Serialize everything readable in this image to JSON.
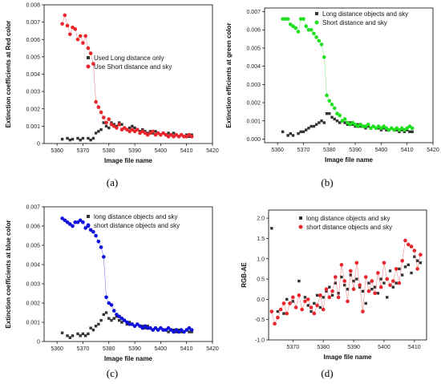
{
  "chart_data": [
    {
      "type": "scatter",
      "panel_label": "(a)",
      "xlabel": "Image file name",
      "ylabel": "Extinction coefficients at Red color",
      "xlim": [
        5355,
        5420
      ],
      "ylim": [
        0,
        0.008
      ],
      "xticks": [
        "5360",
        "5370",
        "5380",
        "5390",
        "5400",
        "5410",
        "5420"
      ],
      "yticks": [
        "0",
        "0.001",
        "0.002",
        "0.003",
        "0.004",
        "0.005",
        "0.006",
        "0.007",
        "0.008"
      ],
      "legend_position": "middle-right",
      "series": [
        {
          "name": "Used Long distance only",
          "color": "#333333",
          "marker": "square",
          "connect": false,
          "x": [
            5362,
            5364,
            5365,
            5366,
            5368,
            5369,
            5370,
            5371,
            5372,
            5373,
            5374,
            5375,
            5376,
            5377,
            5378,
            5379,
            5380,
            5381,
            5382,
            5383,
            5384,
            5385,
            5386,
            5387,
            5388,
            5389,
            5390,
            5391,
            5392,
            5393,
            5394,
            5395,
            5396,
            5397,
            5398,
            5399,
            5400,
            5401,
            5402,
            5403,
            5404,
            5405,
            5406,
            5407,
            5408,
            5409,
            5410,
            5411,
            5412
          ],
          "y": [
            0.00025,
            0.0003,
            0.0002,
            0.00025,
            0.0003,
            0.0002,
            0.0003,
            -5e-05,
            0.0003,
            0.0002,
            0.0003,
            0.0006,
            0.0007,
            0.0008,
            0.0012,
            0.001,
            0.0009,
            0.0012,
            0.0011,
            0.001,
            0.0012,
            0.0011,
            0.0009,
            0.0008,
            0.0009,
            0.001,
            0.0009,
            0.0008,
            0.0007,
            0.0008,
            0.0007,
            0.0006,
            0.0007,
            0.0006,
            0.0007,
            0.0006,
            0.0005,
            0.0006,
            0.0005,
            0.0006,
            0.0005,
            0.0006,
            0.0005,
            0.0004,
            0.0005,
            0.0004,
            0.0005,
            0.0004,
            0.0005
          ]
        },
        {
          "name": "Use Short distance and sky",
          "color": "#e8262b",
          "marker": "circle",
          "connect": true,
          "x": [
            5362,
            5363,
            5364,
            5365,
            5366,
            5367,
            5368,
            5369,
            5370,
            5371,
            5372,
            5373,
            5374,
            5375,
            5376,
            5377,
            5378,
            5379,
            5380,
            5381,
            5382,
            5383,
            5384,
            5385,
            5386,
            5387,
            5388,
            5389,
            5390,
            5391,
            5392,
            5393,
            5394,
            5395,
            5396,
            5397,
            5398,
            5399,
            5400,
            5401,
            5402,
            5403,
            5404,
            5405,
            5406,
            5407,
            5408,
            5409,
            5410,
            5411,
            5412
          ],
          "y": [
            0.0069,
            0.0074,
            0.0068,
            0.0063,
            0.0067,
            0.0066,
            0.006,
            0.0062,
            0.0058,
            0.0062,
            0.0055,
            0.0052,
            0.0046,
            0.0024,
            0.0021,
            0.0018,
            0.0015,
            0.0012,
            0.0014,
            0.0011,
            0.001,
            0.0009,
            0.0011,
            0.0008,
            0.0009,
            0.0008,
            0.0007,
            0.0008,
            0.0007,
            0.0008,
            0.0006,
            0.0007,
            0.0006,
            0.0005,
            0.0006,
            0.0007,
            0.0005,
            0.0006,
            0.0005,
            0.0006,
            0.0005,
            0.0004,
            0.0005,
            0.0004,
            0.0005,
            0.0004,
            0.0005,
            0.0004,
            0.0004,
            0.0005,
            0.0004
          ]
        }
      ]
    },
    {
      "type": "scatter",
      "panel_label": "(b)",
      "xlabel": "Image file name",
      "ylabel": "Extinction efficients at green color",
      "xlim": [
        5355,
        5420
      ],
      "ylim": [
        -0.0002,
        0.0072
      ],
      "xticks": [
        "5360",
        "5370",
        "5380",
        "5390",
        "5400",
        "5410",
        "5420"
      ],
      "yticks": [
        "0.000",
        "0.001",
        "0.002",
        "0.003",
        "0.004",
        "0.005",
        "0.006",
        "0.007"
      ],
      "legend_position": "top-right",
      "series": [
        {
          "name": "Long distance objects and sky",
          "color": "#333333",
          "marker": "square",
          "connect": false,
          "x": [
            5362,
            5364,
            5365,
            5366,
            5368,
            5369,
            5370,
            5371,
            5372,
            5373,
            5374,
            5375,
            5376,
            5377,
            5378,
            5379,
            5380,
            5381,
            5382,
            5383,
            5384,
            5385,
            5386,
            5387,
            5388,
            5389,
            5390,
            5391,
            5392,
            5393,
            5394,
            5395,
            5396,
            5397,
            5398,
            5399,
            5400,
            5401,
            5402,
            5403,
            5404,
            5405,
            5406,
            5407,
            5408,
            5409,
            5410,
            5411,
            5412
          ],
          "y": [
            0.0004,
            0.0002,
            0.0003,
            0.0002,
            0.0003,
            0.0004,
            0.0004,
            0.0005,
            0.0006,
            0.0007,
            0.0007,
            0.0008,
            0.0009,
            0.001,
            0.0009,
            0.0014,
            0.0014,
            0.0012,
            0.0011,
            0.001,
            0.0009,
            0.001,
            0.0009,
            0.0008,
            0.0009,
            0.0008,
            0.0007,
            0.0008,
            0.0007,
            0.0007,
            0.0006,
            0.0007,
            0.0006,
            0.0007,
            0.0006,
            0.0006,
            0.0005,
            0.0006,
            0.0005,
            0.0005,
            0.0006,
            0.0005,
            0.0005,
            0.0004,
            0.0005,
            0.0004,
            0.0005,
            0.0004,
            0.0004
          ]
        },
        {
          "name": "Short distance and sky",
          "color": "#1fe01f",
          "marker": "circle",
          "connect": true,
          "x": [
            5362,
            5363,
            5364,
            5365,
            5366,
            5367,
            5368,
            5369,
            5370,
            5371,
            5372,
            5373,
            5374,
            5375,
            5376,
            5377,
            5378,
            5379,
            5380,
            5381,
            5382,
            5383,
            5384,
            5385,
            5386,
            5387,
            5388,
            5389,
            5390,
            5391,
            5392,
            5393,
            5394,
            5395,
            5396,
            5397,
            5398,
            5399,
            5400,
            5401,
            5402,
            5403,
            5404,
            5405,
            5406,
            5407,
            5408,
            5409,
            5410,
            5411,
            5412
          ],
          "y": [
            0.0066,
            0.0066,
            0.0066,
            0.0063,
            0.0062,
            0.0061,
            0.0059,
            0.0066,
            0.0066,
            0.0062,
            0.006,
            0.006,
            0.0058,
            0.0056,
            0.0054,
            0.0052,
            0.0045,
            0.0024,
            0.0021,
            0.0019,
            0.0017,
            0.0014,
            0.0013,
            0.001,
            0.0011,
            0.0009,
            0.0008,
            0.0009,
            0.0008,
            0.0007,
            0.0008,
            0.0007,
            0.0007,
            0.0008,
            0.0006,
            0.0007,
            0.0006,
            0.0007,
            0.0006,
            0.0007,
            0.0006,
            0.0005,
            0.0006,
            0.0005,
            0.0006,
            0.0005,
            0.0006,
            0.0005,
            0.0006,
            0.0007,
            0.0006
          ]
        }
      ]
    },
    {
      "type": "scatter",
      "panel_label": "(c)",
      "xlabel": "Image file name",
      "ylabel": "Extinction coefficients at blue color",
      "xlim": [
        5355,
        5420
      ],
      "ylim": [
        0,
        0.007
      ],
      "xticks": [
        "5360",
        "5370",
        "5380",
        "5390",
        "5400",
        "5410",
        "5420"
      ],
      "yticks": [
        "0",
        "0.001",
        "0.002",
        "0.003",
        "0.004",
        "0.005",
        "0.006",
        "0.007"
      ],
      "legend_position": "top-right",
      "series": [
        {
          "name": "long distance objects and sky",
          "color": "#333333",
          "marker": "square",
          "connect": false,
          "x": [
            5362,
            5364,
            5365,
            5366,
            5368,
            5369,
            5370,
            5371,
            5372,
            5373,
            5374,
            5375,
            5376,
            5377,
            5378,
            5379,
            5380,
            5381,
            5382,
            5383,
            5384,
            5385,
            5386,
            5387,
            5388,
            5389,
            5390,
            5391,
            5392,
            5393,
            5394,
            5395,
            5396,
            5397,
            5398,
            5399,
            5400,
            5401,
            5402,
            5403,
            5404,
            5405,
            5406,
            5407,
            5408,
            5409,
            5410,
            5411,
            5412
          ],
          "y": [
            0.00045,
            0.0003,
            0.0002,
            0.0003,
            0.0004,
            0.0003,
            0.0004,
            0.0003,
            0.0004,
            0.0007,
            0.0006,
            0.0008,
            0.0009,
            0.0011,
            0.0014,
            0.0015,
            0.0012,
            0.0011,
            0.0012,
            0.0013,
            0.0011,
            0.001,
            0.0011,
            0.0009,
            0.001,
            0.0009,
            0.0008,
            0.0009,
            0.0008,
            0.0008,
            0.0007,
            0.0008,
            0.0007,
            0.0006,
            0.0007,
            0.0006,
            0.0007,
            0.0006,
            0.0006,
            0.0005,
            0.0006,
            0.0006,
            0.0005,
            0.0006,
            0.0005,
            0.0005,
            0.0006,
            0.0005,
            0.0005
          ]
        },
        {
          "name": "short distance objects and sky",
          "color": "#1010dd",
          "marker": "circle",
          "connect": true,
          "x": [
            5362,
            5363,
            5364,
            5365,
            5366,
            5367,
            5368,
            5369,
            5370,
            5371,
            5372,
            5373,
            5374,
            5375,
            5376,
            5377,
            5378,
            5379,
            5380,
            5381,
            5382,
            5383,
            5384,
            5385,
            5386,
            5387,
            5388,
            5389,
            5390,
            5391,
            5392,
            5393,
            5394,
            5395,
            5396,
            5397,
            5398,
            5399,
            5400,
            5401,
            5402,
            5403,
            5404,
            5405,
            5406,
            5407,
            5408,
            5409,
            5410,
            5411,
            5412
          ],
          "y": [
            0.0064,
            0.0063,
            0.0062,
            0.0061,
            0.006,
            0.0062,
            0.0062,
            0.0063,
            0.0062,
            0.0059,
            0.006,
            0.0058,
            0.0057,
            0.0055,
            0.0052,
            0.0049,
            0.0044,
            0.0023,
            0.002,
            0.0019,
            0.0016,
            0.0014,
            0.0013,
            0.0012,
            0.0011,
            0.001,
            0.0009,
            0.0009,
            0.0008,
            0.0009,
            0.0008,
            0.0007,
            0.0008,
            0.0007,
            0.0007,
            0.0006,
            0.0007,
            0.0006,
            0.0007,
            0.0006,
            0.0006,
            0.0007,
            0.0006,
            0.0005,
            0.0006,
            0.0005,
            0.0006,
            0.0005,
            0.0006,
            0.0007,
            0.0006
          ]
        }
      ]
    },
    {
      "type": "scatter",
      "panel_label": "(d)",
      "xlabel": "Image file name",
      "ylabel": "RGB-AE",
      "xlim": [
        5362,
        5414
      ],
      "ylim": [
        -1.0,
        2.2
      ],
      "xticks": [
        "5370",
        "5380",
        "5390",
        "5400",
        "5410"
      ],
      "yticks": [
        "-1.0",
        "-0.5",
        "0.0",
        "0.5",
        "1.0",
        "1.5",
        "2.0"
      ],
      "legend_position": "top-right",
      "series": [
        {
          "name": "long distance objects and sky",
          "color": "#333333",
          "marker": "square",
          "connect": false,
          "x": [
            5363,
            5365,
            5367,
            5368,
            5370,
            5372,
            5374,
            5375,
            5376,
            5377,
            5378,
            5379,
            5380,
            5381,
            5382,
            5383,
            5384,
            5385,
            5386,
            5387,
            5388,
            5389,
            5390,
            5391,
            5392,
            5393,
            5394,
            5395,
            5396,
            5397,
            5398,
            5399,
            5400,
            5401,
            5402,
            5403,
            5404,
            5405,
            5406,
            5407,
            5408,
            5409,
            5410,
            5411,
            5412
          ],
          "y": [
            1.75,
            -0.3,
            -0.35,
            0.0,
            -0.05,
            0.45,
            0.05,
            -0.15,
            -0.3,
            -0.1,
            0.1,
            -0.2,
            0.05,
            0.2,
            0.3,
            0.1,
            0.4,
            0.15,
            0.55,
            0.35,
            0.25,
            0.6,
            0.45,
            0.5,
            0.3,
            0.2,
            -0.1,
            0.4,
            0.25,
            0.3,
            0.15,
            0.5,
            0.4,
            0.05,
            0.7,
            0.3,
            0.4,
            0.75,
            0.6,
            0.8,
            0.85,
            0.65,
            1.05,
            0.95,
            0.9
          ]
        },
        {
          "name": "short distance objects and sky",
          "color": "#e8262b",
          "marker": "circle",
          "connect": true,
          "x": [
            5363,
            5364,
            5365,
            5366,
            5367,
            5368,
            5369,
            5370,
            5371,
            5372,
            5373,
            5374,
            5375,
            5376,
            5377,
            5378,
            5379,
            5380,
            5381,
            5382,
            5383,
            5384,
            5385,
            5386,
            5387,
            5388,
            5389,
            5390,
            5391,
            5392,
            5393,
            5394,
            5395,
            5396,
            5397,
            5398,
            5399,
            5400,
            5401,
            5402,
            5403,
            5404,
            5405,
            5406,
            5407,
            5408,
            5409,
            5410,
            5411,
            5412
          ],
          "y": [
            -0.3,
            -0.6,
            -0.45,
            -0.25,
            -0.1,
            -0.35,
            -0.1,
            0.05,
            -0.2,
            0.1,
            -0.25,
            -0.05,
            0.0,
            -0.2,
            -0.35,
            -0.15,
            0.1,
            -0.25,
            0.25,
            0.05,
            0.2,
            0.55,
            0.05,
            0.85,
            0.45,
            -0.05,
            0.7,
            0.25,
            0.9,
            0.35,
            -0.3,
            0.55,
            0.2,
            0.45,
            0.15,
            0.65,
            0.3,
            0.9,
            0.5,
            0.35,
            0.45,
            0.75,
            0.4,
            0.95,
            1.45,
            1.35,
            1.3,
            1.2,
            0.75,
            1.1
          ]
        }
      ]
    }
  ]
}
